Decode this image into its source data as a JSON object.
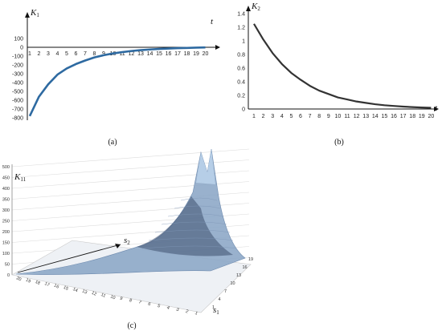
{
  "chart_data": [
    {
      "id": "a",
      "type": "line",
      "panel_label": "(a)",
      "ylabel_main": "K",
      "ylabel_sub": "1",
      "xlabel": "t",
      "x": [
        1,
        2,
        3,
        4,
        5,
        6,
        7,
        8,
        9,
        10,
        11,
        12,
        13,
        14,
        15,
        16,
        17,
        18,
        19,
        20
      ],
      "series": [
        {
          "values": [
            -780,
            -560,
            -420,
            -310,
            -240,
            -190,
            -150,
            -115,
            -90,
            -70,
            -55,
            -42,
            -32,
            -25,
            -19,
            -14,
            -10,
            -7,
            -4,
            -2
          ]
        }
      ],
      "y_ticks": [
        "100",
        "0",
        "-100",
        "-200",
        "-300",
        "-400",
        "-500",
        "-600",
        "-700",
        "-800"
      ],
      "ylim": [
        -800,
        100
      ],
      "line_color": "#2e6aa1"
    },
    {
      "id": "b",
      "type": "line",
      "panel_label": "(b)",
      "ylabel_main": "K",
      "ylabel_sub": "2",
      "xlabel": "t",
      "x": [
        1,
        2,
        3,
        4,
        5,
        6,
        7,
        8,
        9,
        10,
        11,
        12,
        13,
        14,
        15,
        16,
        17,
        18,
        19,
        20
      ],
      "series": [
        {
          "values": [
            1.25,
            1.02,
            0.82,
            0.66,
            0.53,
            0.43,
            0.34,
            0.27,
            0.22,
            0.17,
            0.14,
            0.11,
            0.09,
            0.07,
            0.055,
            0.045,
            0.035,
            0.028,
            0.022,
            0.018
          ]
        }
      ],
      "y_ticks": [
        "1.4",
        "1.2",
        "1",
        "0.8",
        "0.6",
        "0.4",
        "0.2",
        "0"
      ],
      "ylim": [
        0,
        1.4
      ],
      "line_color": "#333333"
    },
    {
      "id": "c",
      "type": "surface",
      "panel_label": "(c)",
      "zlabel_main": "K",
      "zlabel_sub": "11",
      "s2_label_main": "s",
      "s2_label_sub": "2",
      "s1_label_main": "s",
      "s1_label_sub": "1",
      "z_ticks": [
        "500",
        "450",
        "400",
        "350",
        "300",
        "250",
        "200",
        "150",
        "100",
        "50",
        "0"
      ],
      "s2_ticks": [
        "20",
        "19",
        "18",
        "17",
        "16",
        "15",
        "14",
        "13",
        "12",
        "11",
        "10",
        "9",
        "8",
        "7",
        "6",
        "5",
        "4",
        "3",
        "2",
        "1"
      ],
      "s1_ticks": [
        "19",
        "16",
        "13",
        "10",
        "7",
        "4",
        "1"
      ],
      "surface_color": "#8ea9c8"
    }
  ]
}
